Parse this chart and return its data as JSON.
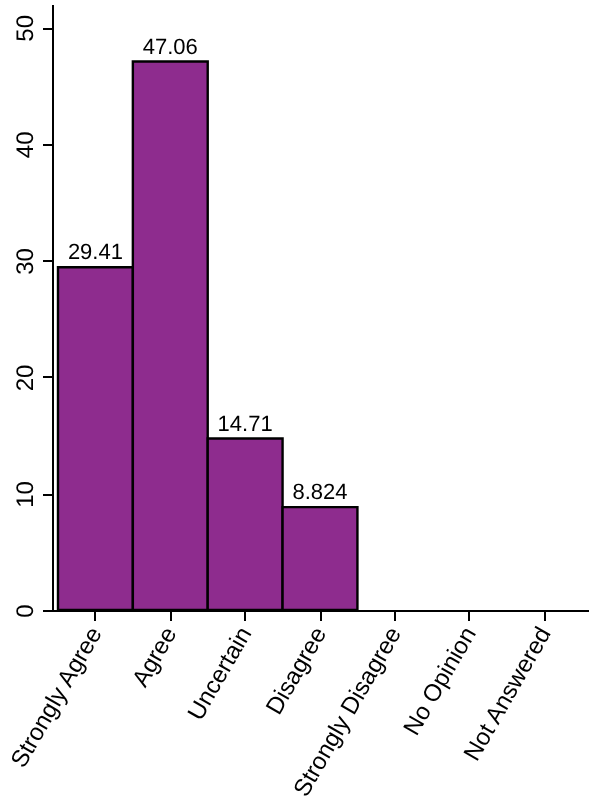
{
  "chart_data": {
    "type": "bar",
    "categories": [
      "Strongly Agree",
      "Agree",
      "Uncertain",
      "Disagree",
      "Strongly Disagree",
      "No Opinion",
      "Not Answered"
    ],
    "values": [
      29.41,
      47.06,
      14.71,
      8.824,
      0,
      0,
      0
    ],
    "value_labels": [
      "29.41",
      "47.06",
      "14.71",
      "8.824",
      null,
      null,
      null
    ],
    "color": "#8e2c8e",
    "ylim": [
      0,
      52
    ],
    "yticks": [
      0,
      10,
      20,
      30,
      40,
      50
    ],
    "grid": false
  }
}
